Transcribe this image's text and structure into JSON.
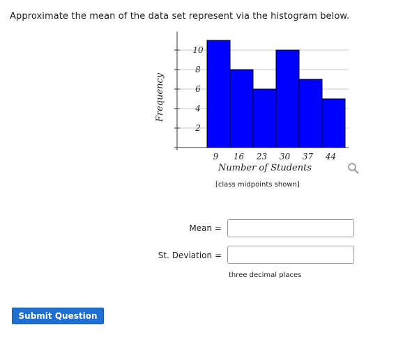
{
  "question": {
    "text": "Approximate the mean of the data set represent via the histogram below."
  },
  "chart_data": {
    "type": "bar",
    "categories": [
      "9",
      "16",
      "23",
      "30",
      "37",
      "44"
    ],
    "values": [
      11,
      8,
      6,
      10,
      7,
      5
    ],
    "xlabel": "Number of Students",
    "ylabel": "Frequency",
    "yticks": [
      "2",
      "4",
      "6",
      "8",
      "10"
    ],
    "ylim": [
      0,
      11
    ],
    "grid": true,
    "bar_color": "#0000ff",
    "note": "[class midpoints shown]"
  },
  "form": {
    "mean_label": "Mean =",
    "sd_label": "St. Deviation =",
    "mean_value": "",
    "sd_value": "",
    "hint": "three decimal places"
  },
  "submit": {
    "label": "Submit Question",
    "color": "#1f6fd1"
  },
  "icons": {
    "zoom": "magnifier-icon"
  }
}
